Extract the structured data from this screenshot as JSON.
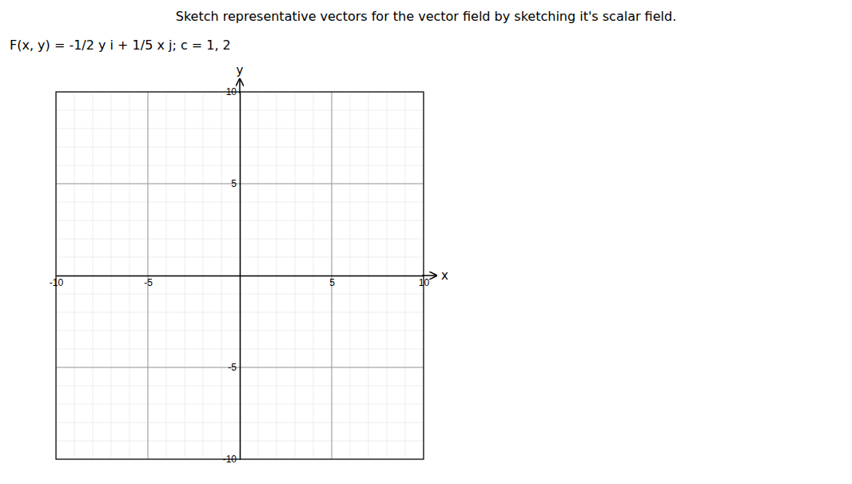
{
  "chart_data": {
    "type": "coordinate_plane",
    "title": "Sketch representative vectors for the vector field by sketching it's scalar field.",
    "annotations": [
      "F(x, y) = -1/2 y i + 1/5 x j; c = 1, 2"
    ],
    "xlabel": "x",
    "ylabel": "y",
    "xlim": [
      -10,
      10
    ],
    "ylim": [
      -10,
      10
    ],
    "xticks": [
      -10,
      -5,
      5,
      10
    ],
    "yticks": [
      -10,
      -5,
      5,
      10
    ],
    "xticks_minor": [
      -10,
      -9,
      -8,
      -7,
      -6,
      -5,
      -4,
      -3,
      -2,
      -1,
      0,
      1,
      2,
      3,
      4,
      5,
      6,
      7,
      8,
      9,
      10
    ],
    "yticks_minor": [
      -10,
      -9,
      -8,
      -7,
      -6,
      -5,
      -4,
      -3,
      -2,
      -1,
      0,
      1,
      2,
      3,
      4,
      5,
      6,
      7,
      8,
      9,
      10
    ],
    "grid": true
  }
}
